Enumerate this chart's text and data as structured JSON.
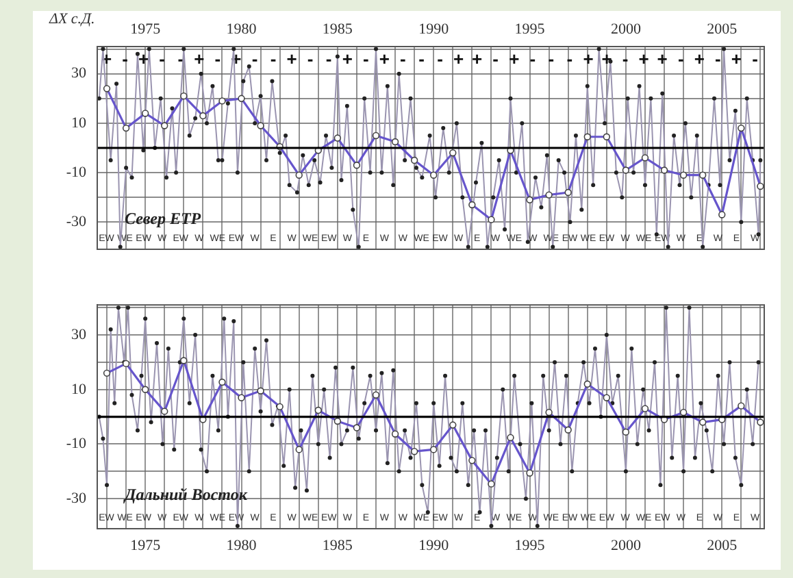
{
  "chart_data": [
    {
      "type": "line",
      "title": "Север ЕТР",
      "ylabel": "ΔX с.Д.",
      "xlim": [
        1972.5,
        2007.2
      ],
      "ylim": [
        -41,
        41
      ],
      "xticks": [
        {
          "value": 1973,
          "label": null
        },
        {
          "value": 1974,
          "label": null
        },
        1975,
        {
          "value": 1976,
          "label": null
        },
        {
          "value": 1977,
          "label": null
        },
        {
          "value": 1978,
          "label": null
        },
        {
          "value": 1979,
          "label": null
        },
        1980,
        {
          "value": 1981,
          "label": null
        },
        {
          "value": 1982,
          "label": null
        },
        {
          "value": 1983,
          "label": null
        },
        {
          "value": 1984,
          "label": null
        },
        1985,
        {
          "value": 1986,
          "label": null
        },
        {
          "value": 1987,
          "label": null
        },
        {
          "value": 1988,
          "label": null
        },
        {
          "value": 1989,
          "label": null
        },
        1990,
        {
          "value": 1991,
          "label": null
        },
        {
          "value": 1992,
          "label": null
        },
        {
          "value": 1993,
          "label": null
        },
        {
          "value": 1994,
          "label": null
        },
        1995,
        {
          "value": 1996,
          "label": null
        },
        {
          "value": 1997,
          "label": null
        },
        {
          "value": 1998,
          "label": null
        },
        {
          "value": 1999,
          "label": null
        },
        2000,
        {
          "value": 2001,
          "label": null
        },
        {
          "value": 2002,
          "label": null
        },
        {
          "value": 2003,
          "label": null
        },
        {
          "value": 2004,
          "label": null
        },
        2005,
        {
          "value": 2006,
          "label": null
        },
        {
          "value": 2007,
          "label": null
        }
      ],
      "yticks": [
        -30,
        {
          "value": -20,
          "label": null
        },
        -10,
        {
          "value": 0,
          "label": null
        },
        10,
        {
          "value": 20,
          "label": null
        },
        30,
        {
          "value": 40,
          "label": null
        }
      ],
      "grid": true,
      "legend": false,
      "marker": "circle",
      "ref_lines": [
        {
          "axis": "y",
          "value": 0,
          "label": null,
          "color": "#000000"
        }
      ],
      "series": [
        {
          "color": "#9a94b0",
          "x": [
            1972.6,
            1972.8,
            1973.2,
            1973.5,
            1973.7,
            1974.0,
            1974.3,
            1974.6,
            1974.9,
            1975.2,
            1975.5,
            1975.8,
            1976.1,
            1976.4,
            1976.6,
            1977.0,
            1977.3,
            1977.6,
            1977.9,
            1978.2,
            1978.5,
            1978.8,
            1979.0,
            1979.3,
            1979.6,
            1979.8,
            1980.1,
            1980.4,
            1980.7,
            1981.0,
            1981.3,
            1981.6,
            1982.0,
            1982.3,
            1982.5,
            1982.9,
            1983.2,
            1983.5,
            1983.8,
            1984.1,
            1984.4,
            1984.7,
            1985.0,
            1985.2,
            1985.5,
            1985.8,
            1986.1,
            1986.4,
            1986.7,
            1987.0,
            1987.3,
            1987.6,
            1987.9,
            1988.2,
            1988.5,
            1988.8,
            1989.1,
            1989.4,
            1989.8,
            1990.1,
            1990.5,
            1990.8,
            1991.2,
            1991.5,
            1991.8,
            1992.2,
            1992.5,
            1992.8,
            1993.1,
            1993.4,
            1993.7,
            1994.0,
            1994.3,
            1994.6,
            1994.9,
            1995.3,
            1995.6,
            1995.9,
            1996.2,
            1996.5,
            1996.8,
            1997.1,
            1997.4,
            1997.7,
            1998.0,
            1998.3,
            1998.6,
            1998.9,
            1999.2,
            1999.5,
            1999.8,
            2000.1,
            2000.4,
            2000.7,
            2001.0,
            2001.3,
            2001.6,
            2001.9,
            2002.2,
            2002.5,
            2002.8,
            2003.1,
            2003.4,
            2003.7,
            2004.0,
            2004.3,
            2004.6,
            2004.9,
            2005.1,
            2005.4,
            2005.7,
            2006.0,
            2006.3,
            2006.6,
            2006.9,
            2007.0
          ],
          "values": [
            20,
            40,
            -5,
            26,
            -40,
            -8,
            -12,
            38,
            -1,
            40,
            0,
            20,
            -12,
            16,
            -10,
            40,
            5,
            12,
            30,
            10,
            25,
            -5,
            -5,
            18,
            40,
            -10,
            27,
            33,
            10,
            21,
            -5,
            27,
            -2,
            5,
            -15,
            -18,
            -3,
            -15,
            -5,
            -14,
            5,
            -8,
            37,
            -13,
            17,
            -25,
            -40,
            20,
            -10,
            40,
            -10,
            25,
            -15,
            30,
            -5,
            20,
            -8,
            -12,
            5,
            -20,
            8,
            -10,
            10,
            -20,
            -40,
            -14,
            2,
            -40,
            -20,
            -5,
            -33,
            20,
            -10,
            10,
            -38,
            -12,
            -24,
            -3,
            -40,
            -5,
            -10,
            -30,
            5,
            -25,
            25,
            -15,
            40,
            10,
            35,
            -10,
            -20,
            20,
            -10,
            25,
            -15,
            20,
            -35,
            22,
            -40,
            5,
            -15,
            10,
            -20,
            5,
            -40,
            -15,
            20,
            -15,
            40,
            -5,
            15,
            -30,
            20,
            -5,
            -35,
            -5
          ]
        },
        {
          "color": "#6655cc",
          "x": [
            1973,
            1974,
            1975,
            1976,
            1977,
            1978,
            1979,
            1980,
            1981,
            1982,
            1983,
            1984,
            1985,
            1986,
            1987,
            1988,
            1989,
            1990,
            1991,
            1992,
            1993,
            1994,
            1995,
            1996,
            1997,
            1998,
            1999,
            2000,
            2001,
            2002,
            2003,
            2004,
            2005,
            2006,
            2007
          ],
          "values": [
            24,
            8,
            14,
            9,
            21,
            13,
            19,
            20,
            9,
            0.5,
            -11,
            -1,
            4,
            -7,
            5,
            2.5,
            -5,
            -11,
            -2,
            -23,
            -29,
            -1,
            -21,
            -19,
            -18,
            4.5,
            4.5,
            -9,
            -4,
            -9,
            -11,
            -11,
            -27,
            8,
            -15.5
          ]
        }
      ],
      "annotations": [
        "+ - + - - + - + - - + - - + - + - - - + + - + - - - + + - + + - + - + -",
        "EW WE EW W EW W WE EW W E W WE EW W E W W WE EW W E W WE W WE EW WE EW W WE EW W E W E W"
      ]
    },
    {
      "type": "line",
      "title": "Дальний Восток",
      "xlim": [
        1972.5,
        2007.2
      ],
      "ylim": [
        -41,
        41
      ],
      "xticks": [
        {
          "value": 1973,
          "label": null
        },
        {
          "value": 1974,
          "label": null
        },
        1975,
        {
          "value": 1976,
          "label": null
        },
        {
          "value": 1977,
          "label": null
        },
        {
          "value": 1978,
          "label": null
        },
        {
          "value": 1979,
          "label": null
        },
        1980,
        {
          "value": 1981,
          "label": null
        },
        {
          "value": 1982,
          "label": null
        },
        {
          "value": 1983,
          "label": null
        },
        {
          "value": 1984,
          "label": null
        },
        1985,
        {
          "value": 1986,
          "label": null
        },
        {
          "value": 1987,
          "label": null
        },
        {
          "value": 1988,
          "label": null
        },
        {
          "value": 1989,
          "label": null
        },
        1990,
        {
          "value": 1991,
          "label": null
        },
        {
          "value": 1992,
          "label": null
        },
        {
          "value": 1993,
          "label": null
        },
        {
          "value": 1994,
          "label": null
        },
        1995,
        {
          "value": 1996,
          "label": null
        },
        {
          "value": 1997,
          "label": null
        },
        {
          "value": 1998,
          "label": null
        },
        {
          "value": 1999,
          "label": null
        },
        2000,
        {
          "value": 2001,
          "label": null
        },
        {
          "value": 2002,
          "label": null
        },
        {
          "value": 2003,
          "label": null
        },
        {
          "value": 2004,
          "label": null
        },
        2005,
        {
          "value": 2006,
          "label": null
        },
        {
          "value": 2007,
          "label": null
        }
      ],
      "yticks": [
        -30,
        {
          "value": -20,
          "label": null
        },
        -10,
        {
          "value": 0,
          "label": null
        },
        10,
        {
          "value": 20,
          "label": null
        },
        30,
        {
          "value": 40,
          "label": null
        }
      ],
      "grid": true,
      "legend": false,
      "marker": "circle",
      "ref_lines": [
        {
          "axis": "y",
          "value": 0,
          "label": null,
          "color": "#000000"
        }
      ],
      "series": [
        {
          "color": "#9a94b0",
          "x": [
            1972.6,
            1972.8,
            1973.0,
            1973.2,
            1973.4,
            1973.6,
            1973.9,
            1974.1,
            1974.3,
            1974.6,
            1974.8,
            1975.0,
            1975.3,
            1975.6,
            1975.9,
            1976.2,
            1976.5,
            1976.8,
            1977.0,
            1977.3,
            1977.6,
            1977.9,
            1978.2,
            1978.5,
            1978.8,
            1979.1,
            1979.3,
            1979.6,
            1979.8,
            1980.1,
            1980.4,
            1980.7,
            1981.0,
            1981.3,
            1981.6,
            1981.9,
            1982.2,
            1982.5,
            1982.8,
            1983.1,
            1983.4,
            1983.7,
            1984.0,
            1984.3,
            1984.6,
            1984.9,
            1985.2,
            1985.5,
            1985.8,
            1986.1,
            1986.4,
            1986.7,
            1987.0,
            1987.3,
            1987.6,
            1987.9,
            1988.2,
            1988.5,
            1988.8,
            1989.1,
            1989.4,
            1989.7,
            1990.0,
            1990.3,
            1990.6,
            1990.9,
            1991.2,
            1991.5,
            1991.8,
            1992.1,
            1992.4,
            1992.7,
            1993.0,
            1993.3,
            1993.6,
            1993.9,
            1994.2,
            1994.5,
            1994.8,
            1995.1,
            1995.4,
            1995.7,
            1996.0,
            1996.3,
            1996.6,
            1996.9,
            1997.2,
            1997.5,
            1997.8,
            1998.1,
            1998.4,
            1998.7,
            1999.0,
            1999.3,
            1999.6,
            2000.0,
            2000.3,
            2000.6,
            2000.9,
            2001.2,
            2001.5,
            2001.8,
            2002.1,
            2002.4,
            2002.7,
            2003.0,
            2003.3,
            2003.6,
            2003.9,
            2004.2,
            2004.5,
            2004.8,
            2005.1,
            2005.4,
            2005.7,
            2006.0,
            2006.3,
            2006.6,
            2006.9
          ],
          "values": [
            0,
            -8,
            -25,
            32,
            5,
            40,
            20,
            40,
            8,
            -5,
            15,
            36,
            -2,
            27,
            -10,
            25,
            -12,
            20,
            36,
            5,
            30,
            -12,
            -20,
            15,
            -5,
            36,
            0,
            35,
            -40,
            20,
            -20,
            25,
            2,
            28,
            -3,
            4,
            -18,
            10,
            -26,
            -5,
            -27,
            15,
            -10,
            10,
            -15,
            18,
            -10,
            -5,
            18,
            -8,
            5,
            15,
            -5,
            16,
            -17,
            17,
            -20,
            -5,
            -15,
            5,
            -25,
            -35,
            5,
            -18,
            15,
            -15,
            -20,
            5,
            -25,
            -5,
            -35,
            -5,
            -40,
            -15,
            10,
            -20,
            15,
            -10,
            -30,
            5,
            -40,
            15,
            -5,
            20,
            -10,
            15,
            -20,
            5,
            20,
            5,
            25,
            0,
            30,
            5,
            15,
            -20,
            25,
            -10,
            10,
            -5,
            20,
            -25,
            40,
            -15,
            15,
            -20,
            40,
            -15,
            5,
            -5,
            -20,
            15,
            -10,
            20,
            -15,
            -25,
            10,
            -10,
            20
          ]
        },
        {
          "color": "#6655cc",
          "x": [
            1973,
            1974,
            1975,
            1976,
            1977,
            1978,
            1979,
            1980,
            1981,
            1982,
            1983,
            1984,
            1985,
            1986,
            1987,
            1988,
            1989,
            1990,
            1991,
            1992,
            1993,
            1994,
            1995,
            1996,
            1997,
            1998,
            1999,
            2000,
            2001,
            2002,
            2003,
            2004,
            2005,
            2006,
            2007
          ],
          "values": [
            16,
            19.5,
            10,
            2,
            20.6,
            -1,
            12.7,
            7,
            9.5,
            3.7,
            -12,
            2.4,
            -1.6,
            -4,
            8,
            -6.3,
            -12.7,
            -12,
            -3,
            -16,
            -24.6,
            -7.6,
            -20.6,
            1.6,
            -4.8,
            12,
            7,
            -5.6,
            3,
            -1,
            1.6,
            -2,
            -1,
            4,
            -2
          ]
        }
      ],
      "annotations": [
        "EW WE EW W EW W WE EW W E W WE EW W E W W WE EW W E W WE W WE EW WE EW W WE EW W E W E W"
      ]
    }
  ]
}
